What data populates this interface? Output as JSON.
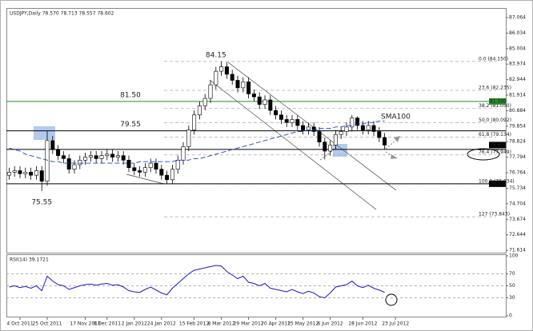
{
  "chart_data": [
    {
      "type": "candlestick",
      "title": "USDJPY,Daily 78.570 78.713 78.557 78.602",
      "open": [
        76.6,
        76.8,
        76.9,
        76.7,
        76.8,
        76.6,
        76.9,
        76.2,
        78.9,
        78.3,
        77.9,
        77.7,
        77.0,
        77.3,
        77.6,
        77.8,
        77.9,
        77.7,
        77.9,
        78.0,
        77.8,
        77.9,
        77.6,
        77.1,
        76.9,
        76.8,
        77.1,
        77.4,
        77.0,
        76.6,
        76.3,
        77.0,
        77.6,
        78.5,
        79.6,
        80.6,
        81.2,
        81.7,
        82.6,
        83.5,
        83.8,
        83.3,
        82.9,
        82.4,
        82.8,
        82.0,
        81.8,
        81.3,
        81.6,
        80.9,
        80.6,
        80.3,
        80.1,
        80.3,
        79.9,
        79.6,
        79.8,
        79.5,
        78.8,
        78.2,
        78.6,
        79.3,
        79.5,
        79.8,
        80.4,
        79.9,
        79.6,
        79.9,
        79.5,
        79.1
      ],
      "high": [
        77.1,
        77.2,
        77.2,
        77.1,
        77.1,
        77.2,
        77.2,
        79.55,
        79.2,
        78.6,
        78.2,
        78.0,
        77.6,
        77.9,
        78.1,
        78.2,
        78.2,
        78.2,
        78.3,
        78.3,
        78.2,
        78.2,
        77.9,
        77.4,
        77.2,
        77.4,
        77.7,
        77.7,
        77.3,
        76.9,
        77.3,
        77.9,
        78.8,
        79.9,
        80.9,
        81.5,
        82.0,
        82.9,
        83.8,
        84.15,
        84.1,
        83.6,
        83.2,
        83.1,
        83.1,
        82.3,
        82.1,
        81.9,
        81.9,
        81.2,
        80.9,
        80.6,
        80.6,
        80.6,
        80.2,
        80.1,
        80.1,
        79.8,
        79.1,
        78.9,
        79.6,
        79.8,
        80.1,
        80.6,
        80.5,
        80.2,
        80.2,
        80.2,
        79.8,
        79.4
      ],
      "low": [
        76.3,
        76.5,
        76.4,
        76.4,
        76.3,
        76.3,
        75.55,
        75.9,
        78.0,
        77.6,
        77.4,
        76.7,
        76.7,
        77.0,
        77.3,
        77.5,
        77.4,
        77.4,
        77.6,
        77.5,
        77.5,
        77.3,
        76.8,
        76.6,
        76.5,
        76.5,
        76.8,
        76.7,
        76.3,
        76.03,
        76.0,
        76.7,
        77.3,
        78.2,
        79.3,
        80.3,
        80.9,
        81.4,
        82.3,
        83.2,
        83.0,
        82.6,
        82.1,
        82.1,
        81.7,
        81.5,
        81.0,
        81.0,
        80.6,
        80.3,
        80.0,
        79.8,
        79.8,
        79.6,
        79.3,
        79.3,
        79.2,
        78.5,
        77.65,
        77.9,
        78.3,
        79.0,
        79.2,
        79.5,
        79.6,
        79.3,
        79.3,
        79.2,
        78.8,
        78.3
      ],
      "close": [
        76.8,
        76.9,
        76.7,
        76.8,
        76.6,
        76.9,
        76.2,
        78.9,
        78.3,
        77.9,
        77.7,
        77.0,
        77.3,
        77.6,
        77.8,
        77.9,
        77.7,
        77.9,
        78.0,
        77.8,
        77.9,
        77.6,
        77.1,
        76.9,
        76.8,
        77.1,
        77.4,
        77.0,
        76.6,
        76.3,
        77.0,
        77.6,
        78.5,
        79.6,
        80.6,
        81.2,
        81.7,
        82.6,
        83.5,
        83.8,
        83.3,
        82.9,
        82.4,
        82.8,
        82.0,
        81.8,
        81.3,
        81.6,
        80.9,
        80.6,
        80.3,
        80.1,
        80.3,
        79.9,
        79.6,
        79.8,
        79.5,
        78.8,
        78.2,
        78.6,
        79.3,
        79.5,
        79.8,
        80.4,
        79.9,
        79.6,
        79.9,
        79.5,
        79.1,
        78.6
      ],
      "series": [
        {
          "name": "SMA100",
          "color": "#2040c0",
          "values": [
            78.4,
            78.3,
            78.2,
            78.0,
            77.9,
            77.8,
            77.7,
            77.6,
            77.5,
            77.5,
            77.4,
            77.4,
            77.4,
            77.4,
            77.4,
            77.4,
            77.4,
            77.4,
            77.4,
            77.4,
            77.4,
            77.4,
            77.4,
            77.4,
            77.5,
            77.5,
            77.5,
            77.5,
            77.5,
            77.5,
            77.5,
            77.6,
            77.6,
            77.6,
            77.7,
            77.7,
            77.8,
            77.9,
            78.0,
            78.1,
            78.2,
            78.3,
            78.4,
            78.5,
            78.6,
            78.7,
            78.8,
            78.9,
            79.0,
            79.1,
            79.2,
            79.3,
            79.4,
            79.5,
            79.5,
            79.6,
            79.6,
            79.7,
            79.7,
            79.7,
            79.8,
            79.8,
            79.9,
            79.9,
            80.0,
            80.0,
            80.1,
            80.1,
            80.2,
            80.2
          ]
        }
      ],
      "ylim": [
        71.46,
        87.7
      ],
      "yticks": [
        71.614,
        72.644,
        73.674,
        74.704,
        75.734,
        76.764,
        77.794,
        78.824,
        79.854,
        80.884,
        81.914,
        82.944,
        83.974,
        85.004,
        86.034,
        87.064
      ],
      "xticks": [
        {
          "value": 2,
          "label": "4 Oct 2011"
        },
        {
          "value": 7,
          "label": "25 Oct 2011"
        },
        {
          "value": 14,
          "label": "17 Nov 2011"
        },
        {
          "value": 18,
          "label": "8 Dec 2011"
        },
        {
          "value": 23,
          "label": "2 Jan 2012"
        },
        {
          "value": 28,
          "label": "24 Jan 2012"
        },
        {
          "value": 34,
          "label": "15 Feb 2012"
        },
        {
          "value": 39,
          "label": "8 Mar 2012"
        },
        {
          "value": 44,
          "label": "29 Mar 2012"
        },
        {
          "value": 49,
          "label": "20 Apr 2012"
        },
        {
          "value": 54,
          "label": "15 May 2012"
        },
        {
          "value": 59,
          "label": "6 Jun 2012"
        },
        {
          "value": 65,
          "label": "28 Jun 2012"
        },
        {
          "value": 71,
          "label": "23 Jul 2012"
        }
      ],
      "annotations": [
        {
          "value": 84.15,
          "label": "84.15",
          "at": 38,
          "color": "#555555"
        },
        {
          "value": 81.5,
          "label": "81.50",
          "at": 12,
          "color": "#2a8a2a"
        },
        {
          "value": 79.55,
          "label": "79.55",
          "at": 12,
          "color": "#2a8a2a"
        },
        {
          "value": 75.55,
          "label": "75.55",
          "at": 6,
          "color": "#2a8a2a"
        }
      ],
      "levels": [
        {
          "value": 81.5,
          "color": "#2a8a2a"
        },
        {
          "value": 79.55,
          "color": "#000000"
        },
        {
          "value": 78.31,
          "color": "#000000"
        },
        {
          "value": 76.034,
          "color": "#000000"
        }
      ],
      "fib_levels": [
        {
          "value": 84.15,
          "label": "0.0 (84.150)"
        },
        {
          "value": 82.235,
          "label": "23.6 (82.235)"
        },
        {
          "value": 81.05,
          "label": "38.2 (81.050)"
        },
        {
          "value": 80.092,
          "label": "50.0 (80.092)"
        },
        {
          "value": 79.134,
          "label": "61.8 (79.134)"
        },
        {
          "value": 77.949,
          "label": "76.4 (77.949)"
        },
        {
          "value": 76.034,
          "label": "100.0 (76.034)"
        },
        {
          "value": 73.843,
          "label": "127 (73.843)"
        }
      ],
      "price_tags": [
        {
          "value": 81.5,
          "label": "81.500",
          "color": "#2a8a2a"
        },
        {
          "value": 78.602,
          "label": "78.602",
          "color": "#000000"
        },
        {
          "value": 76.034,
          "label": "76.034",
          "color": "#000000"
        }
      ]
    },
    {
      "type": "line",
      "title": "RSI(14) 39.1721",
      "series": [
        {
          "name": "RSI(14)",
          "color": "#1a1acc",
          "values": [
            48,
            50,
            47,
            49,
            46,
            50,
            42,
            66,
            58,
            52,
            50,
            44,
            47,
            50,
            52,
            53,
            51,
            53,
            54,
            51,
            52,
            48,
            42,
            40,
            39,
            44,
            48,
            43,
            38,
            35,
            46,
            54,
            62,
            70,
            76,
            78,
            80,
            82,
            84,
            83,
            74,
            68,
            62,
            66,
            56,
            54,
            50,
            54,
            46,
            44,
            42,
            40,
            44,
            40,
            37,
            41,
            38,
            32,
            30,
            38,
            48,
            50,
            52,
            58,
            50,
            47,
            51,
            46,
            43,
            39.1721
          ]
        }
      ],
      "ylim": [
        0,
        100
      ],
      "yticks": [
        0,
        30,
        50,
        70,
        100
      ]
    }
  ]
}
